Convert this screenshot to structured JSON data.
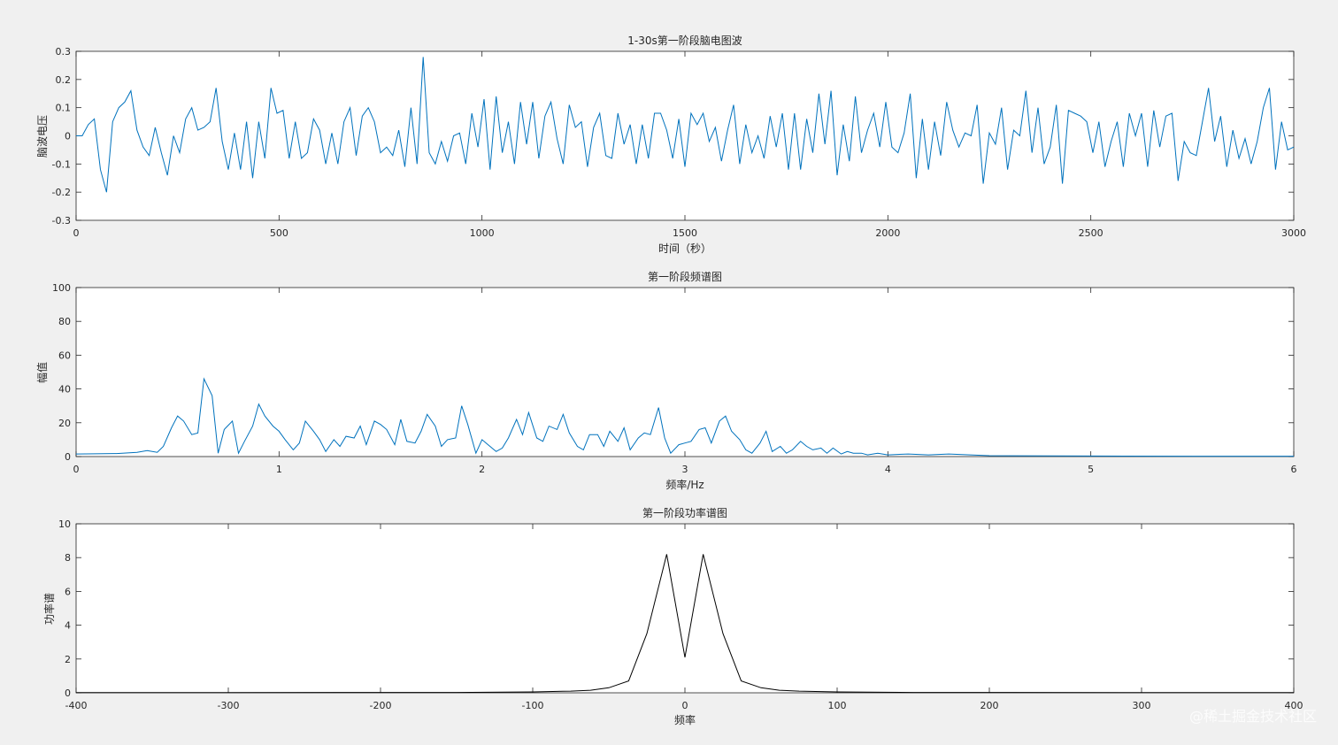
{
  "watermark": "@稀土掘金技术社区",
  "chart_data": [
    {
      "type": "line",
      "title": "1-30s第一阶段脑电图波",
      "xlabel": "时间（秒）",
      "ylabel": "脑波电压",
      "xlim": [
        0,
        3000
      ],
      "ylim": [
        -0.3,
        0.3
      ],
      "xticks": [
        0,
        500,
        1000,
        1500,
        2000,
        2500,
        3000
      ],
      "yticks": [
        -0.3,
        -0.2,
        -0.1,
        0,
        0.1,
        0.2,
        0.3
      ],
      "ytick_labels": [
        "-0.3",
        "-0.2",
        "-0.1",
        "0",
        "0.1",
        "0.2",
        "0.3"
      ],
      "color": "#0072bd",
      "series": [
        {
          "x": [
            0,
            15,
            30,
            45,
            60,
            75,
            90,
            105,
            120,
            135,
            150,
            165,
            180,
            195,
            210,
            225,
            240,
            255,
            270,
            285,
            300,
            315,
            330,
            345,
            360,
            375,
            390,
            405,
            420,
            435,
            450,
            465,
            480,
            495,
            510,
            525,
            540,
            555,
            570,
            585,
            600,
            615,
            630,
            645,
            660,
            675,
            690,
            705,
            720,
            735,
            750,
            765,
            780,
            795,
            810,
            825,
            840,
            855,
            870,
            885,
            900,
            915,
            930,
            945,
            960,
            975,
            990,
            1005,
            1020,
            1035,
            1050,
            1065,
            1080,
            1095,
            1110,
            1125,
            1140,
            1155,
            1170,
            1185,
            1200,
            1215,
            1230,
            1245,
            1260,
            1275,
            1290,
            1305,
            1320,
            1335,
            1350,
            1365,
            1380,
            1395,
            1410,
            1425,
            1440,
            1455,
            1470,
            1485,
            1500,
            1515,
            1530,
            1545,
            1560,
            1575,
            1590,
            1605,
            1620,
            1635,
            1650,
            1665,
            1680,
            1695,
            1710,
            1725,
            1740,
            1755,
            1770,
            1785,
            1800,
            1815,
            1830,
            1845,
            1860,
            1875,
            1890,
            1905,
            1920,
            1935,
            1950,
            1965,
            1980,
            1995,
            2010,
            2025,
            2040,
            2055,
            2070,
            2085,
            2100,
            2115,
            2130,
            2145,
            2160,
            2175,
            2190,
            2205,
            2220,
            2235,
            2250,
            2265,
            2280,
            2295,
            2310,
            2325,
            2340,
            2355,
            2370,
            2385,
            2400,
            2415,
            2430,
            2445,
            2460,
            2475,
            2490,
            2505,
            2520,
            2535,
            2550,
            2565,
            2580,
            2595,
            2610,
            2625,
            2640,
            2655,
            2670,
            2685,
            2700,
            2715,
            2730,
            2745,
            2760,
            2775,
            2790,
            2805,
            2820,
            2835,
            2850,
            2865,
            2880,
            2895,
            2910,
            2925,
            2940,
            2955,
            2970,
            2985,
            3000
          ],
          "y": [
            0.0,
            0.0,
            0.04,
            0.06,
            -0.12,
            -0.2,
            0.05,
            0.1,
            0.12,
            0.16,
            0.02,
            -0.04,
            -0.07,
            0.03,
            -0.06,
            -0.14,
            0.0,
            -0.06,
            0.06,
            0.1,
            0.02,
            0.03,
            0.05,
            0.17,
            -0.02,
            -0.12,
            0.01,
            -0.12,
            0.05,
            -0.15,
            0.05,
            -0.08,
            0.17,
            0.08,
            0.09,
            -0.08,
            0.05,
            -0.08,
            -0.06,
            0.06,
            0.02,
            -0.1,
            0.01,
            -0.1,
            0.05,
            0.1,
            -0.07,
            0.07,
            0.1,
            0.05,
            -0.06,
            -0.04,
            -0.07,
            0.02,
            -0.11,
            0.1,
            -0.1,
            0.28,
            -0.06,
            -0.1,
            -0.02,
            -0.09,
            0.0,
            0.01,
            -0.1,
            0.08,
            -0.04,
            0.13,
            -0.12,
            0.14,
            -0.06,
            0.05,
            -0.1,
            0.12,
            -0.03,
            0.12,
            -0.08,
            0.07,
            0.12,
            -0.01,
            -0.1,
            0.11,
            0.03,
            0.05,
            -0.11,
            0.03,
            0.08,
            -0.07,
            -0.08,
            0.08,
            -0.03,
            0.04,
            -0.1,
            0.04,
            -0.08,
            0.08,
            0.08,
            0.02,
            -0.08,
            0.06,
            -0.11,
            0.08,
            0.04,
            0.08,
            -0.02,
            0.03,
            -0.09,
            0.02,
            0.11,
            -0.1,
            0.04,
            -0.06,
            0.0,
            -0.08,
            0.07,
            -0.04,
            0.08,
            -0.12,
            0.08,
            -0.12,
            0.06,
            -0.06,
            0.15,
            -0.03,
            0.16,
            -0.14,
            0.04,
            -0.09,
            0.14,
            -0.06,
            0.02,
            0.08,
            -0.04,
            0.12,
            -0.04,
            -0.06,
            0.01,
            0.15,
            -0.15,
            0.06,
            -0.12,
            0.05,
            -0.07,
            0.12,
            0.02,
            -0.04,
            0.01,
            0.0,
            0.11,
            -0.17,
            0.01,
            -0.03,
            0.1,
            -0.12,
            0.02,
            0.0,
            0.16,
            -0.06,
            0.1,
            -0.1,
            -0.04,
            0.11,
            -0.17,
            0.09,
            0.08,
            0.07,
            0.05,
            -0.06,
            0.05,
            -0.11,
            -0.02,
            0.05,
            -0.11,
            0.08,
            0.0,
            0.08,
            -0.11,
            0.09,
            -0.04,
            0.07,
            0.08,
            -0.16,
            -0.02,
            -0.06,
            -0.07,
            0.05,
            0.17,
            -0.02,
            0.07,
            -0.11,
            0.02,
            -0.08,
            -0.01,
            -0.1,
            -0.02,
            0.1,
            0.17,
            -0.12,
            0.05,
            -0.05,
            -0.04
          ]
        }
      ]
    },
    {
      "type": "line",
      "title": "第一阶段频谱图",
      "xlabel": "频率/Hz",
      "ylabel": "幅值",
      "xlim": [
        0,
        6
      ],
      "ylim": [
        0,
        100
      ],
      "xticks": [
        0,
        1,
        2,
        3,
        4,
        5,
        6
      ],
      "yticks": [
        0,
        20,
        40,
        60,
        80,
        100
      ],
      "ytick_labels": [
        "0",
        "20",
        "40",
        "60",
        "80",
        "100"
      ],
      "color": "#0072bd",
      "series": [
        {
          "x": [
            0,
            0.2,
            0.3,
            0.35,
            0.4,
            0.43,
            0.47,
            0.5,
            0.53,
            0.57,
            0.6,
            0.63,
            0.67,
            0.7,
            0.73,
            0.77,
            0.8,
            0.83,
            0.87,
            0.9,
            0.93,
            0.97,
            1.0,
            1.03,
            1.07,
            1.1,
            1.13,
            1.17,
            1.2,
            1.23,
            1.27,
            1.3,
            1.33,
            1.37,
            1.4,
            1.43,
            1.47,
            1.5,
            1.53,
            1.57,
            1.6,
            1.63,
            1.67,
            1.7,
            1.73,
            1.77,
            1.8,
            1.83,
            1.87,
            1.9,
            1.93,
            1.97,
            2.0,
            2.03,
            2.07,
            2.1,
            2.13,
            2.17,
            2.2,
            2.23,
            2.27,
            2.3,
            2.33,
            2.37,
            2.4,
            2.43,
            2.47,
            2.5,
            2.53,
            2.57,
            2.6,
            2.63,
            2.67,
            2.7,
            2.73,
            2.77,
            2.8,
            2.83,
            2.87,
            2.9,
            2.93,
            2.97,
            3.0,
            3.03,
            3.07,
            3.1,
            3.13,
            3.17,
            3.2,
            3.23,
            3.27,
            3.3,
            3.33,
            3.37,
            3.4,
            3.43,
            3.47,
            3.5,
            3.53,
            3.57,
            3.6,
            3.63,
            3.67,
            3.7,
            3.73,
            3.77,
            3.8,
            3.83,
            3.87,
            3.9,
            3.95,
            4.0,
            4.1,
            4.2,
            4.3,
            4.5,
            5.0,
            5.5,
            6.0
          ],
          "y": [
            1.5,
            1.8,
            2.5,
            3.5,
            2.5,
            6,
            17,
            24,
            21,
            13,
            14,
            46,
            36,
            2,
            16,
            21,
            2,
            9,
            18,
            31,
            24,
            18,
            15,
            10,
            4,
            8,
            21,
            15,
            10,
            3,
            10,
            6,
            12,
            11,
            18,
            7,
            21,
            19,
            16,
            7,
            22,
            9,
            8,
            15,
            25,
            18,
            6,
            10,
            11,
            30,
            19,
            2,
            10,
            7,
            3,
            5,
            11,
            22,
            13,
            26,
            11,
            9,
            18,
            16,
            25,
            14,
            6,
            4,
            13,
            13,
            6,
            15,
            9,
            17,
            4,
            11,
            14,
            13,
            29,
            11,
            2,
            7,
            8,
            9,
            16,
            17,
            8,
            21,
            24,
            15,
            10,
            4,
            2,
            8,
            15,
            3,
            6,
            2,
            4,
            9,
            6,
            4,
            5,
            2,
            5,
            1.5,
            3,
            2,
            2,
            1,
            2,
            1,
            1.5,
            1,
            1.5,
            0.5,
            0.3,
            0.2,
            0.2
          ]
        }
      ]
    },
    {
      "type": "line",
      "title": "第一阶段功率谱图",
      "xlabel": "频率",
      "ylabel": "功率谱",
      "xlim": [
        -400,
        400
      ],
      "ylim": [
        0,
        10
      ],
      "xticks": [
        -400,
        -300,
        -200,
        -100,
        0,
        100,
        200,
        300,
        400
      ],
      "yticks": [
        0,
        2,
        4,
        6,
        8,
        10
      ],
      "ytick_labels": [
        "0",
        "2",
        "4",
        "6",
        "8",
        "10"
      ],
      "color": "#000000",
      "series": [
        {
          "x": [
            -400,
            -150,
            -100,
            -75,
            -62,
            -50,
            -37,
            -25,
            -12,
            0,
            12,
            25,
            37,
            50,
            62,
            75,
            100,
            150,
            400
          ],
          "y": [
            0.01,
            0.02,
            0.05,
            0.1,
            0.15,
            0.3,
            0.7,
            3.5,
            8.2,
            2.1,
            8.2,
            3.5,
            0.7,
            0.3,
            0.15,
            0.1,
            0.05,
            0.02,
            0.01
          ]
        }
      ]
    }
  ]
}
